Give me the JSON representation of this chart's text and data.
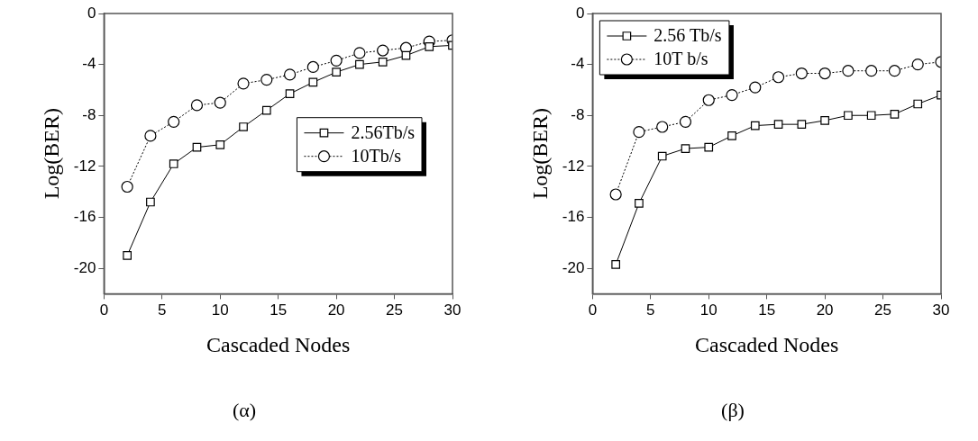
{
  "chart_data": [
    {
      "type": "line",
      "title": "(α)",
      "xlabel": "Cascaded Nodes",
      "ylabel": "Log(BER)",
      "x": [
        2,
        4,
        6,
        8,
        10,
        12,
        14,
        16,
        18,
        20,
        22,
        24,
        26,
        28,
        30
      ],
      "xlim": [
        0,
        30
      ],
      "xticks": [
        0,
        5,
        10,
        15,
        20,
        25,
        30
      ],
      "ylim": [
        -22,
        0
      ],
      "yticks": [
        -20,
        -16,
        -12,
        -8,
        -4,
        0
      ],
      "grid": false,
      "legend": "right",
      "series": [
        {
          "name": "2.56Tb/s",
          "color": "#000000",
          "marker": "square",
          "line_style": "solid",
          "values": [
            -19,
            -14.8,
            -11.8,
            -10.5,
            -10.3,
            -8.9,
            -7.6,
            -6.3,
            -5.4,
            -4.6,
            -4.0,
            -3.8,
            -3.3,
            -2.6,
            -2.5
          ]
        },
        {
          "name": "10Tb/s",
          "color": "#000000",
          "marker": "circle",
          "line_style": "dotted",
          "values": [
            -13.6,
            -9.6,
            -8.5,
            -7.2,
            -7.0,
            -5.5,
            -5.2,
            -4.8,
            -4.2,
            -3.7,
            -3.1,
            -2.9,
            -2.7,
            -2.2,
            -2.1
          ]
        }
      ]
    },
    {
      "type": "line",
      "title": "(β)",
      "xlabel": "Cascaded Nodes",
      "ylabel": "Log(BER)",
      "x": [
        2,
        4,
        6,
        8,
        10,
        12,
        14,
        16,
        18,
        20,
        22,
        24,
        26,
        28,
        30
      ],
      "xlim": [
        0,
        30
      ],
      "xticks": [
        0,
        5,
        10,
        15,
        20,
        25,
        30
      ],
      "ylim": [
        -22,
        0
      ],
      "yticks": [
        -20,
        -16,
        -12,
        -8,
        -4,
        0
      ],
      "grid": false,
      "legend": "top left",
      "series": [
        {
          "name": "2.56 Tb/s",
          "color": "#000000",
          "marker": "square",
          "line_style": "solid",
          "values": [
            -19.7,
            -14.9,
            -11.2,
            -10.6,
            -10.5,
            -9.6,
            -8.8,
            -8.7,
            -8.7,
            -8.4,
            -8.0,
            -8.0,
            -7.9,
            -7.1,
            -6.4
          ]
        },
        {
          "name": "10T b/s",
          "color": "#000000",
          "marker": "circle",
          "line_style": "dotted",
          "values": [
            -14.2,
            -9.3,
            -8.9,
            -8.5,
            -6.8,
            -6.4,
            -5.8,
            -5.0,
            -4.7,
            -4.7,
            -4.5,
            -4.5,
            -4.5,
            -4.0,
            -3.8
          ]
        }
      ]
    }
  ]
}
